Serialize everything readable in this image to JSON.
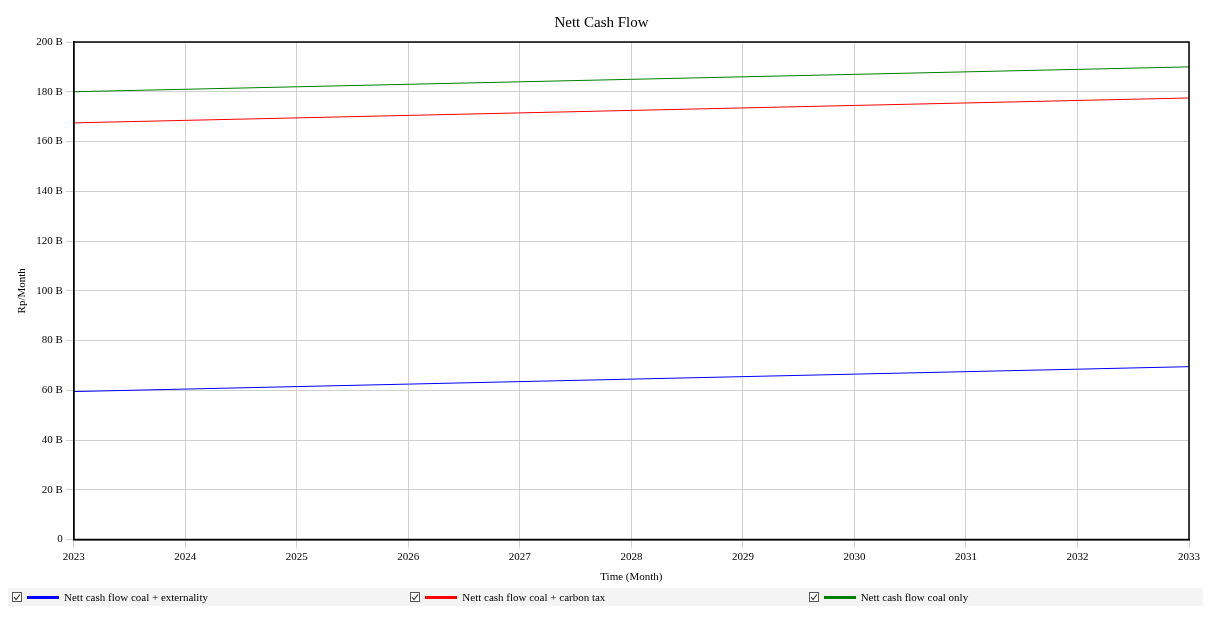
{
  "chart_data": {
    "type": "line",
    "title": "Nett Cash Flow",
    "xlabel": "Time (Month)",
    "ylabel": "Rp/Month",
    "x": [
      2023,
      2024,
      2025,
      2026,
      2027,
      2028,
      2029,
      2030,
      2031,
      2032,
      2033
    ],
    "series": [
      {
        "name": "Nett cash flow coal + externality",
        "color": "#0000ff",
        "values": [
          59.5,
          60.5,
          61.5,
          62.5,
          63.5,
          64.5,
          65.5,
          66.5,
          67.5,
          68.5,
          69.5
        ]
      },
      {
        "name": "Nett cash flow coal + carbon tax",
        "color": "#ff0000",
        "values": [
          167.5,
          168.5,
          169.5,
          170.5,
          171.5,
          172.5,
          173.5,
          174.5,
          175.5,
          176.5,
          177.5
        ]
      },
      {
        "name": "Nett cash flow coal only",
        "color": "#008000",
        "values": [
          180,
          181,
          182,
          183,
          184,
          185,
          186,
          187,
          188,
          189,
          190
        ]
      }
    ],
    "xlim": [
      2023,
      2033
    ],
    "xticks": [
      2023,
      2024,
      2025,
      2026,
      2027,
      2028,
      2029,
      2030,
      2031,
      2032,
      2033
    ],
    "ylim": [
      0,
      200
    ],
    "yticks": [
      0,
      {
        "value": 20,
        "label": "20 B"
      },
      {
        "value": 40,
        "label": "40 B"
      },
      {
        "value": 60,
        "label": "60 B"
      },
      {
        "value": 80,
        "label": "80 B"
      },
      {
        "value": 100,
        "label": "100 B"
      },
      {
        "value": 120,
        "label": "120 B"
      },
      {
        "value": 140,
        "label": "140 B"
      },
      {
        "value": 160,
        "label": "160 B"
      },
      {
        "value": 180,
        "label": "180 B"
      },
      {
        "value": 200,
        "label": "200 B"
      }
    ],
    "grid": true,
    "legend": "bottom",
    "marker": "none",
    "line_style": "solid"
  }
}
